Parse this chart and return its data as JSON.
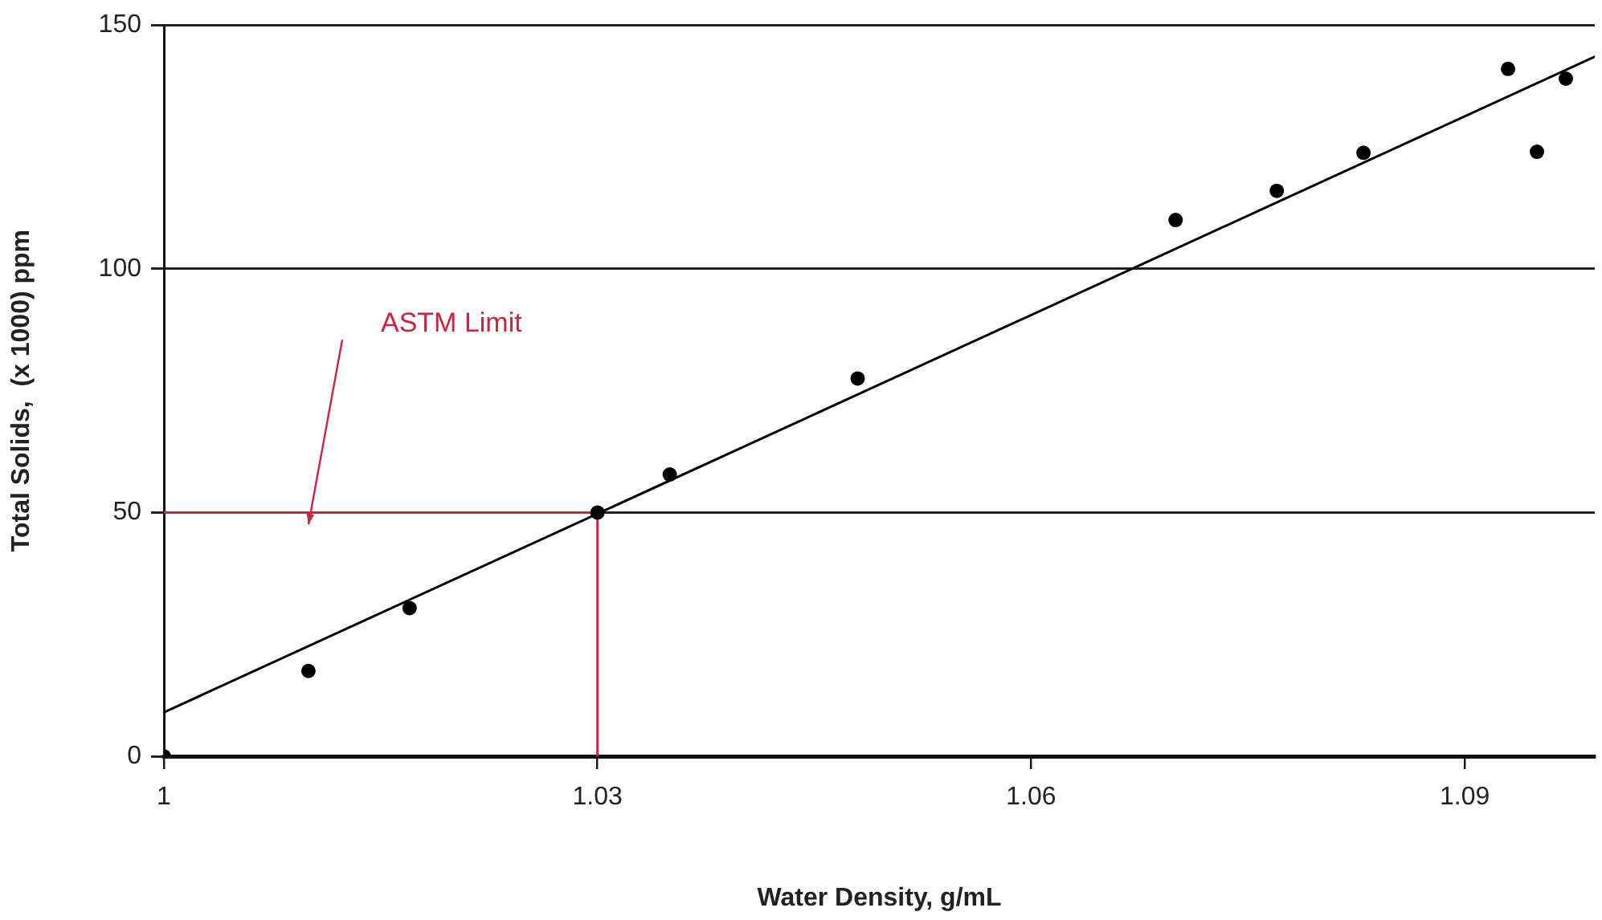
{
  "chart_data": {
    "type": "scatter",
    "xlabel": "Water Density, g/mL",
    "ylabel": "Total Solids,  (x 1000) ppm",
    "xlim": [
      1,
      1.099
    ],
    "ylim": [
      0,
      150
    ],
    "xticks": [
      1,
      1.03,
      1.06,
      1.09
    ],
    "yticks": [
      0,
      50,
      100,
      150
    ],
    "grid": "y",
    "marker": "circle",
    "series": [
      {
        "type": "scatter",
        "color": "#000000",
        "x": [
          1,
          1.01,
          1.017,
          1.03,
          1.035,
          1.048,
          1.07,
          1.077,
          1.083,
          1.093,
          1.095,
          1.097
        ],
        "values": [
          0,
          17.5,
          30.4,
          50,
          57.8,
          77.5,
          110,
          116,
          123.8,
          141,
          124,
          139
        ]
      },
      {
        "type": "line",
        "color": "#000000",
        "marker": "none",
        "x": [
          1,
          1.099
        ],
        "values": [
          9,
          143.5
        ]
      },
      {
        "type": "line",
        "color": "#cc2244",
        "marker": "none",
        "x": [
          1,
          1.03,
          1.03
        ],
        "values": [
          50,
          50,
          0
        ]
      }
    ],
    "annotations": [
      "ASTM Limit"
    ]
  }
}
